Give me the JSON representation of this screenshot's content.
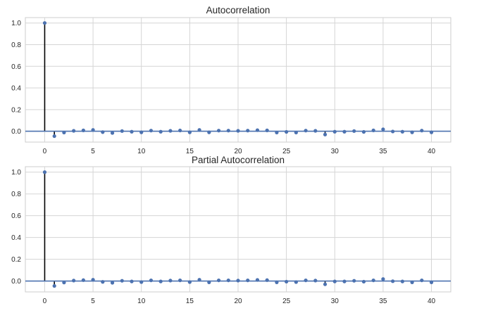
{
  "chart_data": [
    {
      "type": "stem",
      "title": "Autocorrelation",
      "xlim": [
        -2,
        42
      ],
      "ylim": [
        -0.1,
        1.05
      ],
      "xticks": [
        0,
        5,
        10,
        15,
        20,
        25,
        30,
        35,
        40
      ],
      "yticks": [
        0.0,
        0.2,
        0.4,
        0.6,
        0.8,
        1.0
      ],
      "ytick_labels": [
        "0.0",
        "0.2",
        "0.4",
        "0.6",
        "0.8",
        "1.0"
      ],
      "grid": true,
      "lags": [
        0,
        1,
        2,
        3,
        4,
        5,
        6,
        7,
        8,
        9,
        10,
        11,
        12,
        13,
        14,
        15,
        16,
        17,
        18,
        19,
        20,
        21,
        22,
        23,
        24,
        25,
        26,
        27,
        28,
        29,
        30,
        31,
        32,
        33,
        34,
        35,
        36,
        37,
        38,
        39,
        40
      ],
      "values": [
        1.0,
        -0.045,
        -0.012,
        0.004,
        0.008,
        0.012,
        -0.008,
        -0.016,
        0.002,
        -0.004,
        -0.01,
        0.006,
        -0.004,
        0.004,
        0.007,
        -0.01,
        0.012,
        -0.01,
        0.006,
        0.006,
        0.004,
        0.006,
        0.01,
        0.008,
        -0.012,
        -0.006,
        -0.012,
        0.006,
        0.004,
        -0.03,
        -0.004,
        -0.004,
        0.002,
        -0.006,
        0.008,
        0.018,
        -0.002,
        -0.004,
        -0.01,
        0.006,
        -0.01
      ]
    },
    {
      "type": "stem",
      "title": "Partial Autocorrelation",
      "xlim": [
        -2,
        42
      ],
      "ylim": [
        -0.1,
        1.05
      ],
      "xticks": [
        0,
        5,
        10,
        15,
        20,
        25,
        30,
        35,
        40
      ],
      "yticks": [
        0.0,
        0.2,
        0.4,
        0.6,
        0.8,
        1.0
      ],
      "ytick_labels": [
        "0.0",
        "0.2",
        "0.4",
        "0.6",
        "0.8",
        "1.0"
      ],
      "grid": true,
      "lags": [
        0,
        1,
        2,
        3,
        4,
        5,
        6,
        7,
        8,
        9,
        10,
        11,
        12,
        13,
        14,
        15,
        16,
        17,
        18,
        19,
        20,
        21,
        22,
        23,
        24,
        25,
        26,
        27,
        28,
        29,
        30,
        31,
        32,
        33,
        34,
        35,
        36,
        37,
        38,
        39,
        40
      ],
      "values": [
        1.0,
        -0.045,
        -0.014,
        0.004,
        0.008,
        0.012,
        -0.008,
        -0.016,
        0.002,
        -0.004,
        -0.01,
        0.006,
        -0.004,
        0.004,
        0.006,
        -0.01,
        0.012,
        -0.012,
        0.006,
        0.006,
        0.004,
        0.006,
        0.01,
        0.008,
        -0.012,
        -0.006,
        -0.01,
        0.006,
        0.004,
        -0.03,
        -0.004,
        -0.004,
        0.002,
        -0.006,
        0.006,
        0.018,
        -0.002,
        -0.004,
        -0.012,
        0.006,
        -0.012
      ]
    }
  ],
  "colors": {
    "marker": "#4c72b0",
    "stem": "#000000",
    "zero_line": "#4c72b0",
    "grid": "#d5d5d5",
    "frame": "#cccccc"
  }
}
